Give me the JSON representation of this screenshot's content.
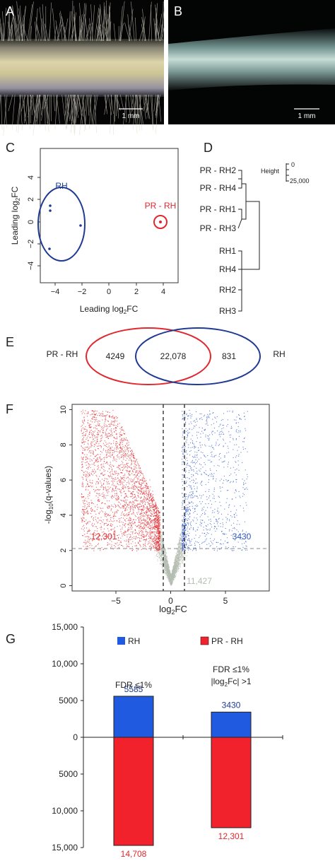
{
  "panels": {
    "a": {
      "letter": "A",
      "scale": "1 mm"
    },
    "b": {
      "letter": "B",
      "scale": "1 mm"
    },
    "c": {
      "letter": "C"
    },
    "d": {
      "letter": "D"
    },
    "e": {
      "letter": "E"
    },
    "f": {
      "letter": "F"
    },
    "g": {
      "letter": "G"
    }
  },
  "mds": {
    "xlabel": "Leading log",
    "xlabel_sub": "2",
    "xlabel_end": "FC",
    "ylabel": "Leading log",
    "ylabel_sub": "2",
    "ylabel_end": "FC",
    "xticks": [
      "−4",
      "−2",
      "0",
      "2",
      "4"
    ],
    "yticks": [
      "4",
      "2",
      "0",
      "−2",
      "−4"
    ],
    "rh_label": "RH",
    "prrh_label": "PR - RH",
    "rh_color": "#1f3a93",
    "prrh_color": "#e0282e"
  },
  "dendro": {
    "leaves": [
      "PR - RH2",
      "PR - RH4",
      "PR - RH1",
      "PR - RH3",
      "RH1",
      "RH4",
      "RH2",
      "RH3"
    ],
    "height_label": "Height",
    "height_ticks": [
      "0",
      "25,000"
    ]
  },
  "venn": {
    "left_label": "PR - RH",
    "right_label": "RH",
    "left_only": "4249",
    "both": "22,078",
    "right_only": "831",
    "left_color": "#e0282e",
    "right_color": "#1f3a93"
  },
  "volcano": {
    "ylabel": "-log",
    "ylabel_sub": "10",
    "ylabel_end": "(q-values)",
    "xlabel": "log",
    "xlabel_sub": "2",
    "xlabel_end": "FC",
    "yticks": [
      "10",
      "8",
      "6",
      "4",
      "2",
      "0"
    ],
    "xticks": [
      "−5",
      "0",
      "5"
    ],
    "left_count": "12,301",
    "right_count": "3430",
    "ns_count": "11,427",
    "up_color": "#e0282e",
    "down_color": "#2c55c9",
    "ns_color": "#b5bdb3"
  },
  "chart_data": {
    "type": "bar",
    "categories": [
      "FDR ≤1%",
      "FDR ≤1% |log2Fc| >1"
    ],
    "category_lines": [
      [
        "FDR ≤1%"
      ],
      [
        "FDR ≤1%",
        "|log",
        "2",
        "Fc| >1"
      ]
    ],
    "series": [
      {
        "name": "RH",
        "values": [
          5585,
          3430
        ],
        "color": "#1f5ae0"
      },
      {
        "name": "PR - RH",
        "values": [
          14708,
          12301
        ],
        "color": "#f2222c"
      }
    ],
    "value_labels": {
      "RH": [
        "5585",
        "3430"
      ],
      "PR - RH": [
        "14,708",
        "12,301"
      ]
    },
    "yticks_up": [
      "15,000",
      "10,000",
      "5000",
      "0"
    ],
    "yticks_down": [
      "5000",
      "10,000",
      "15,000"
    ],
    "ylim": [
      -15000,
      15000
    ],
    "legend_placement": "top"
  }
}
